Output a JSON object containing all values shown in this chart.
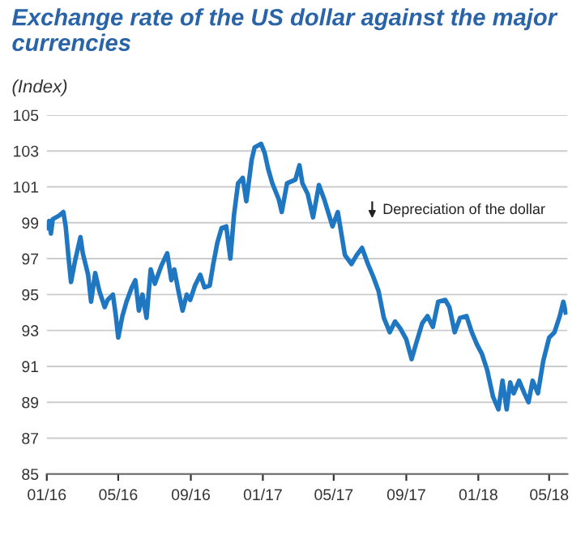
{
  "chart_data": {
    "type": "line",
    "title": "Exchange rate of the US dollar against the major currencies",
    "subtitle": "(Index)",
    "annotations": [
      "Depreciation of the dollar"
    ],
    "x": [
      "2016-01-02",
      "2016-01-05",
      "2016-01-08",
      "2016-01-11",
      "2016-01-22",
      "2016-01-29",
      "2016-02-02",
      "2016-02-07",
      "2016-02-11",
      "2016-02-18",
      "2016-02-27",
      "2016-03-02",
      "2016-03-11",
      "2016-03-16",
      "2016-03-23",
      "2016-03-30",
      "2016-04-08",
      "2016-04-13",
      "2016-04-22",
      "2016-04-27",
      "2016-05-01",
      "2016-05-08",
      "2016-05-15",
      "2016-05-24",
      "2016-05-30",
      "2016-06-05",
      "2016-06-11",
      "2016-06-18",
      "2016-06-25",
      "2016-07-02",
      "2016-07-13",
      "2016-07-23",
      "2016-07-30",
      "2016-08-04",
      "2016-08-11",
      "2016-08-18",
      "2016-08-25",
      "2016-08-31",
      "2016-09-08",
      "2016-09-17",
      "2016-09-24",
      "2016-10-03",
      "2016-10-09",
      "2016-10-16",
      "2016-10-23",
      "2016-10-31",
      "2016-11-07",
      "2016-11-13",
      "2016-11-20",
      "2016-11-28",
      "2016-12-04",
      "2016-12-08",
      "2016-12-13",
      "2016-12-18",
      "2016-12-29",
      "2017-01-04",
      "2017-01-10",
      "2017-01-17",
      "2017-01-28",
      "2017-02-02",
      "2017-02-11",
      "2017-02-25",
      "2017-03-04",
      "2017-03-09",
      "2017-03-18",
      "2017-03-27",
      "2017-04-06",
      "2017-04-15",
      "2017-04-29",
      "2017-05-08",
      "2017-05-20",
      "2017-05-31",
      "2017-06-09",
      "2017-06-18",
      "2017-06-28",
      "2017-07-07",
      "2017-07-16",
      "2017-07-25",
      "2017-08-04",
      "2017-08-13",
      "2017-08-22",
      "2017-09-01",
      "2017-09-10",
      "2017-09-17",
      "2017-09-28",
      "2017-10-07",
      "2017-10-16",
      "2017-10-25",
      "2017-11-06",
      "2017-11-13",
      "2017-11-22",
      "2017-12-01",
      "2017-12-12",
      "2017-12-21",
      "2017-12-30",
      "2018-01-07",
      "2018-01-16",
      "2018-01-26",
      "2018-02-04",
      "2018-02-11",
      "2018-02-18",
      "2018-02-24",
      "2018-03-02",
      "2018-03-11",
      "2018-03-20",
      "2018-03-27",
      "2018-04-03",
      "2018-04-12",
      "2018-04-21",
      "2018-05-01",
      "2018-05-10",
      "2018-05-19",
      "2018-05-25",
      "2018-05-29"
    ],
    "series": [
      {
        "color": "#1f77c2",
        "values": [
          98.7,
          99.1,
          98.4,
          99.2,
          99.4,
          99.6,
          98.8,
          97.0,
          95.7,
          96.9,
          98.2,
          97.3,
          96.1,
          94.6,
          96.2,
          95.2,
          94.3,
          94.7,
          95.0,
          93.8,
          92.6,
          93.8,
          94.6,
          95.4,
          95.8,
          94.1,
          95.0,
          93.7,
          96.4,
          95.6,
          96.6,
          97.3,
          95.8,
          96.4,
          95.2,
          94.1,
          95.0,
          94.7,
          95.5,
          96.1,
          95.4,
          95.5,
          96.7,
          97.9,
          98.7,
          98.8,
          97.0,
          99.4,
          101.2,
          101.5,
          100.2,
          101.2,
          102.5,
          103.2,
          103.4,
          102.9,
          102.0,
          101.2,
          100.3,
          99.6,
          101.2,
          101.4,
          102.2,
          101.2,
          100.6,
          99.3,
          101.1,
          100.3,
          98.8,
          99.6,
          97.2,
          96.7,
          97.2,
          97.6,
          96.7,
          96.0,
          95.2,
          93.7,
          92.9,
          93.5,
          93.1,
          92.5,
          91.4,
          92.2,
          93.4,
          93.8,
          93.2,
          94.6,
          94.7,
          94.3,
          92.9,
          93.7,
          93.8,
          92.9,
          92.2,
          91.7,
          90.8,
          89.3,
          88.6,
          90.2,
          88.6,
          90.1,
          89.5,
          90.2,
          89.5,
          89.0,
          90.2,
          89.5,
          91.3,
          92.6,
          92.9,
          93.8,
          94.6,
          94.0
        ]
      }
    ],
    "xlim": [
      "2016-01-01",
      "2018-06-01"
    ],
    "xticks": [
      {
        "value": "2016-01-01",
        "label": "01/16"
      },
      {
        "value": "2016-05-01",
        "label": "05/16"
      },
      {
        "value": "2016-09-01",
        "label": "09/16"
      },
      {
        "value": "2017-01-01",
        "label": "01/17"
      },
      {
        "value": "2017-05-01",
        "label": "05/17"
      },
      {
        "value": "2017-09-01",
        "label": "09/17"
      },
      {
        "value": "2018-01-01",
        "label": "01/18"
      },
      {
        "value": "2018-05-01",
        "label": "05/18"
      }
    ],
    "ylim": [
      85,
      105
    ],
    "yticks": [
      85,
      87,
      89,
      91,
      93,
      95,
      97,
      99,
      101,
      103,
      105
    ],
    "grid": "y",
    "marker": "none",
    "line_style": "solid"
  }
}
